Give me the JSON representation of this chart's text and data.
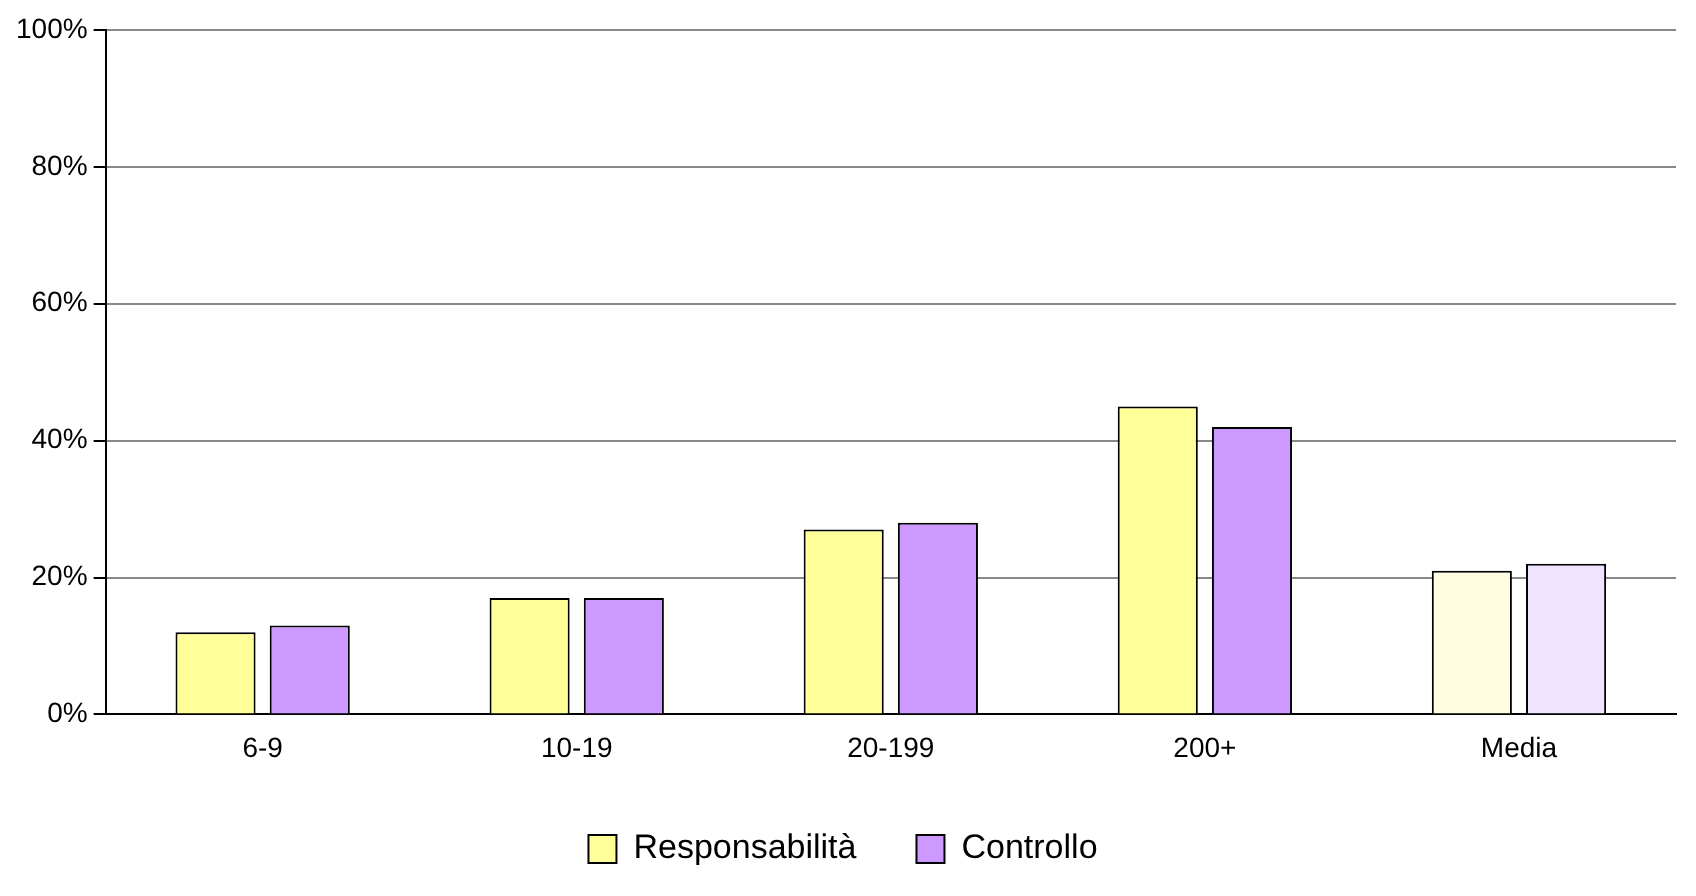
{
  "chart_data": {
    "type": "bar",
    "categories": [
      "6-9",
      "10-19",
      "20-199",
      "200+",
      "Media"
    ],
    "series": [
      {
        "name": "Responsabilità",
        "color": "#ffff99",
        "colors": [
          "#ffff99",
          "#ffff99",
          "#ffff99",
          "#ffff99",
          "#fffde0"
        ],
        "values": [
          12,
          17,
          27,
          45,
          21
        ]
      },
      {
        "name": "Controllo",
        "color": "#cc99ff",
        "colors": [
          "#cc99ff",
          "#cc99ff",
          "#cc99ff",
          "#cc99ff",
          "#efe3ff"
        ],
        "values": [
          13,
          17,
          28,
          42,
          22
        ]
      }
    ],
    "ylim": [
      0,
      100
    ],
    "yticks": [
      {
        "value": 0,
        "label": "0%"
      },
      {
        "value": 20,
        "label": "20%"
      },
      {
        "value": 40,
        "label": "40%"
      },
      {
        "value": 60,
        "label": "60%"
      },
      {
        "value": 80,
        "label": "80%"
      },
      {
        "value": 100,
        "label": "100%"
      }
    ],
    "grid": "y",
    "legend": "bottom"
  }
}
